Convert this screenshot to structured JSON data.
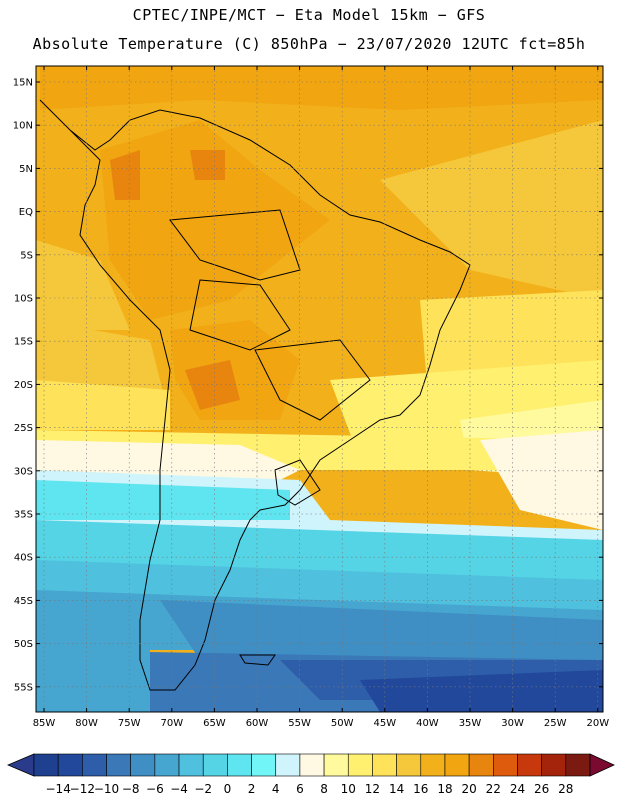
{
  "header": {
    "title_line1": "CPTEC/INPE/MCT −  Eta Model 15km − GFS",
    "title_line2": "Absolute Temperature (C) 850hPa − 23/07/2020 12UTC fct=85h"
  },
  "map": {
    "lat_labels": [
      "15N",
      "10N",
      "5N",
      "EQ",
      "5S",
      "10S",
      "15S",
      "20S",
      "25S",
      "30S",
      "35S",
      "40S",
      "45S",
      "50S",
      "55S"
    ],
    "lon_labels": [
      "85W",
      "80W",
      "75W",
      "70W",
      "65W",
      "60W",
      "55W",
      "50W",
      "45W",
      "40W",
      "35W",
      "30W",
      "25W",
      "20W"
    ]
  },
  "colorbar": {
    "labels": [
      "−14",
      "−12",
      "−10",
      "−8",
      "−6",
      "−4",
      "−2",
      "0",
      "2",
      "4",
      "6",
      "8",
      "10",
      "12",
      "14",
      "16",
      "18",
      "20",
      "22",
      "24",
      "26",
      "28"
    ],
    "colors": [
      "#1f3f8f",
      "#22489b",
      "#2e5eaa",
      "#3a78b8",
      "#3f8ec4",
      "#46a6d0",
      "#4fc0dd",
      "#55d4e6",
      "#5fe5ef",
      "#72f5f7",
      "#cff4fb",
      "#fff9e4",
      "#fffa9e",
      "#fff06f",
      "#fde25a",
      "#f5c83b",
      "#f2b11a",
      "#f0a511",
      "#e8850f",
      "#de5a0d",
      "#c7380c",
      "#a4230b",
      "#7b1a10"
    ],
    "under_color": "#2b3b8c",
    "over_color": "#7a0a30"
  }
}
